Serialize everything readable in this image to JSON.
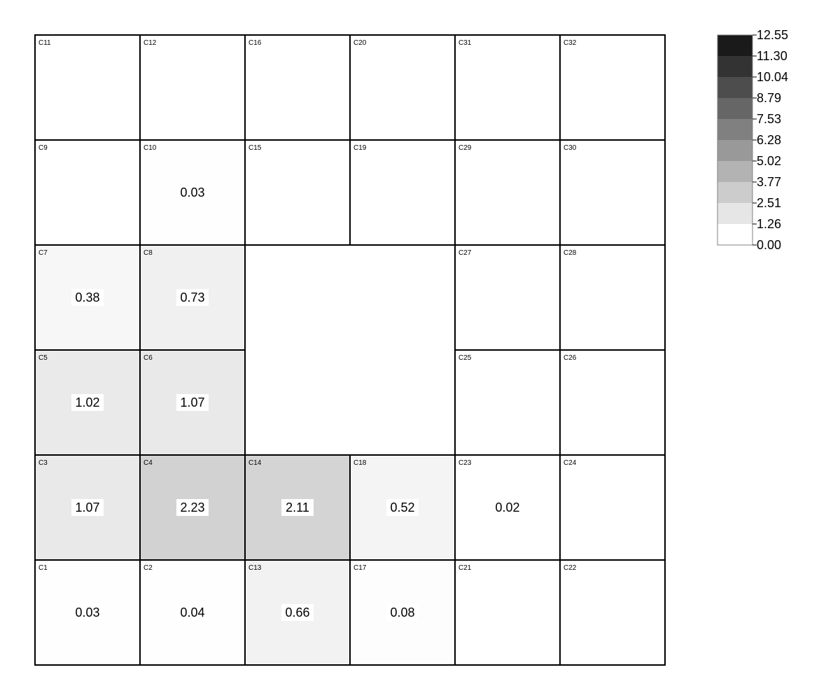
{
  "chart_data": {
    "type": "heatmap",
    "colormap": "greys",
    "grid": {
      "rows": 6,
      "cols": 6
    },
    "cells": [
      {
        "id": "C11",
        "row": 0,
        "col": 0,
        "value": null
      },
      {
        "id": "C12",
        "row": 0,
        "col": 1,
        "value": null
      },
      {
        "id": "C16",
        "row": 0,
        "col": 2,
        "value": null
      },
      {
        "id": "C20",
        "row": 0,
        "col": 3,
        "value": null
      },
      {
        "id": "C31",
        "row": 0,
        "col": 4,
        "value": null
      },
      {
        "id": "C32",
        "row": 0,
        "col": 5,
        "value": null
      },
      {
        "id": "C9",
        "row": 1,
        "col": 0,
        "value": null
      },
      {
        "id": "C10",
        "row": 1,
        "col": 1,
        "value": 0.03
      },
      {
        "id": "C15",
        "row": 1,
        "col": 2,
        "value": null
      },
      {
        "id": "C19",
        "row": 1,
        "col": 3,
        "value": null
      },
      {
        "id": "C29",
        "row": 1,
        "col": 4,
        "value": null
      },
      {
        "id": "C30",
        "row": 1,
        "col": 5,
        "value": null
      },
      {
        "id": "C7",
        "row": 2,
        "col": 0,
        "value": 0.38
      },
      {
        "id": "C8",
        "row": 2,
        "col": 1,
        "value": 0.73
      },
      {
        "id": "C27",
        "row": 2,
        "col": 4,
        "value": null
      },
      {
        "id": "C28",
        "row": 2,
        "col": 5,
        "value": null
      },
      {
        "id": "C5",
        "row": 3,
        "col": 0,
        "value": 1.02
      },
      {
        "id": "C6",
        "row": 3,
        "col": 1,
        "value": 1.07
      },
      {
        "id": "C25",
        "row": 3,
        "col": 4,
        "value": null
      },
      {
        "id": "C26",
        "row": 3,
        "col": 5,
        "value": null
      },
      {
        "id": "C3",
        "row": 4,
        "col": 0,
        "value": 1.07
      },
      {
        "id": "C4",
        "row": 4,
        "col": 1,
        "value": 2.23
      },
      {
        "id": "C14",
        "row": 4,
        "col": 2,
        "value": 2.11
      },
      {
        "id": "C18",
        "row": 4,
        "col": 3,
        "value": 0.52
      },
      {
        "id": "C23",
        "row": 4,
        "col": 4,
        "value": 0.02
      },
      {
        "id": "C24",
        "row": 4,
        "col": 5,
        "value": null
      },
      {
        "id": "C1",
        "row": 5,
        "col": 0,
        "value": 0.03
      },
      {
        "id": "C2",
        "row": 5,
        "col": 1,
        "value": 0.04
      },
      {
        "id": "C13",
        "row": 5,
        "col": 2,
        "value": 0.66
      },
      {
        "id": "C17",
        "row": 5,
        "col": 3,
        "value": 0.08
      },
      {
        "id": "C21",
        "row": 5,
        "col": 4,
        "value": null
      },
      {
        "id": "C22",
        "row": 5,
        "col": 5,
        "value": null
      }
    ],
    "empty_region": {
      "rows": [
        2,
        3
      ],
      "cols": [
        2,
        3
      ]
    },
    "colorbar": {
      "placement": "right",
      "ticks": [
        "0.00",
        "1.26",
        "2.51",
        "3.77",
        "5.02",
        "6.28",
        "7.53",
        "8.79",
        "10.04",
        "11.30",
        "12.55"
      ],
      "range": [
        0,
        12.55
      ],
      "colors": [
        "#ffffff",
        "#e6e6e6",
        "#cccccc",
        "#b3b3b3",
        "#999999",
        "#808080",
        "#666666",
        "#4d4d4d",
        "#333333",
        "#1a1a1a"
      ]
    }
  }
}
